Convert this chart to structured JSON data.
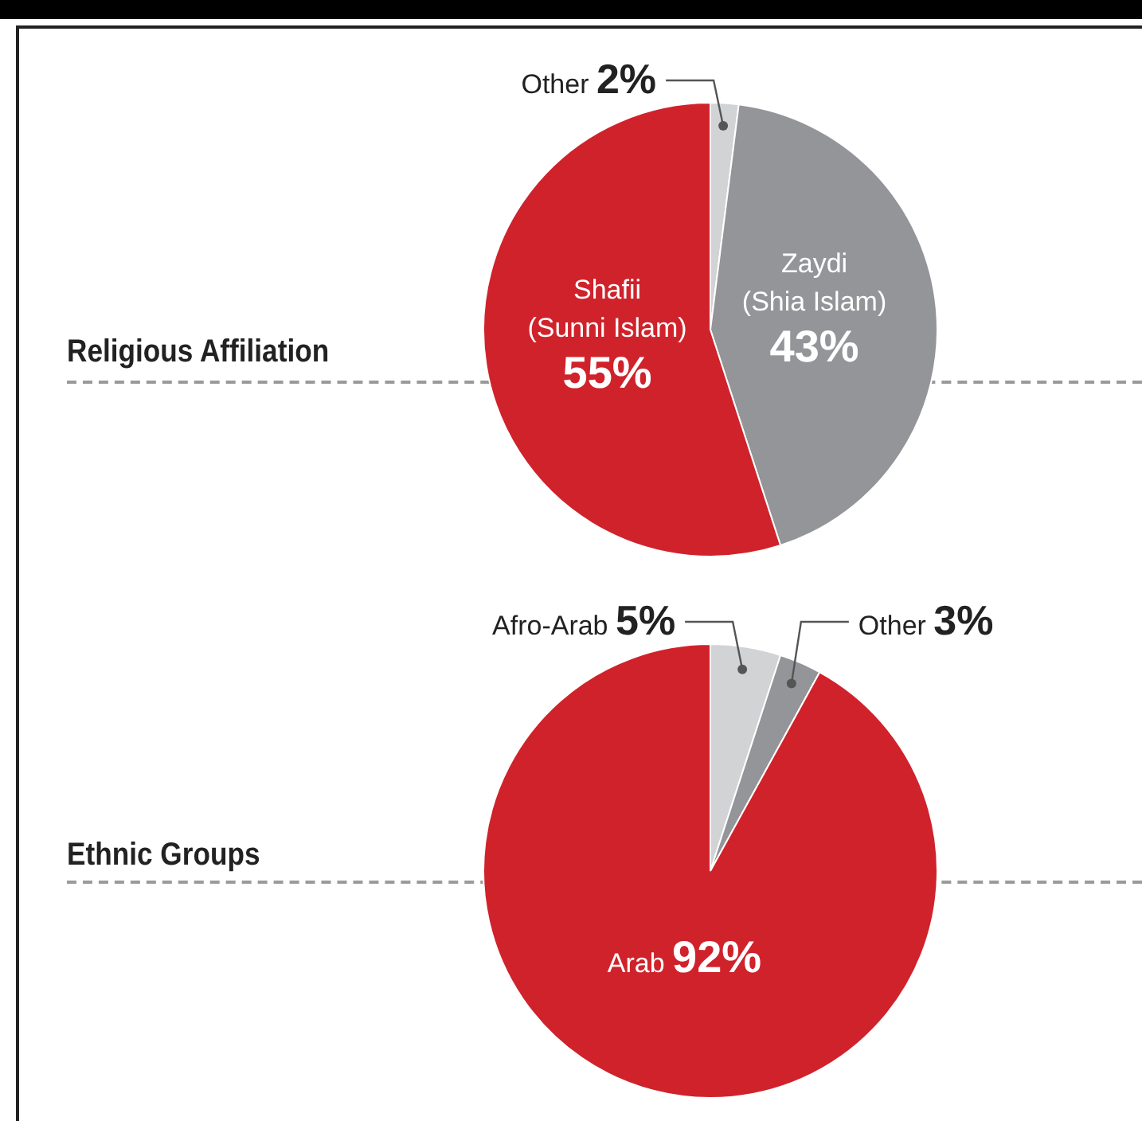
{
  "chart_data": [
    {
      "type": "pie",
      "title": "Religious Affiliation",
      "categories": [
        "Other",
        "Zaydi\n(Shia Islam)",
        "Shafii\n(Sunni Islam)"
      ],
      "values": [
        2,
        43,
        55
      ],
      "value_labels": [
        "2%",
        "43%",
        "55%"
      ],
      "colors": [
        "#d1d3d4",
        "#939598",
        "#d0222b"
      ]
    },
    {
      "type": "pie",
      "title": "Ethnic Groups",
      "categories": [
        "Afro-Arab",
        "Other",
        "Arab"
      ],
      "values": [
        5,
        3,
        92
      ],
      "value_labels": [
        "5%",
        "3%",
        "92%"
      ],
      "colors": [
        "#d1d3d4",
        "#939598",
        "#d0222b"
      ]
    }
  ]
}
